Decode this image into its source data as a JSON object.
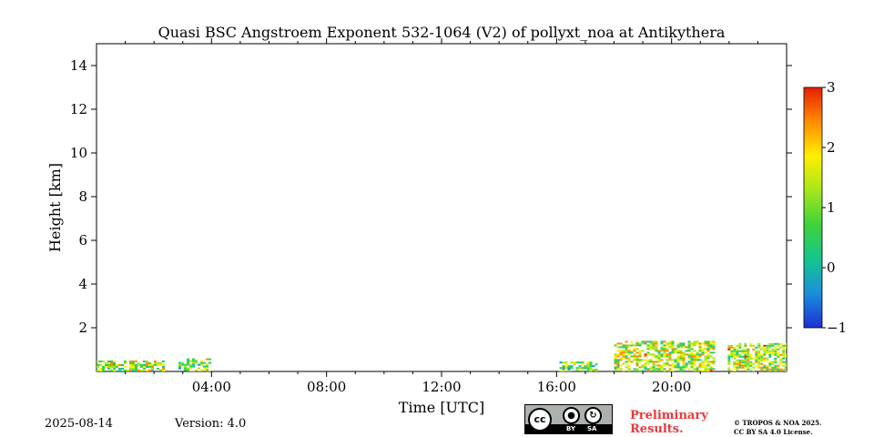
{
  "chart_data": {
    "type": "heatmap",
    "title": "Quasi BSC Angstroem Exponent 532-1064 (V2) of pollyxt_noa at Antikythera",
    "xlabel": "Time [UTC]",
    "ylabel": "Height [km]",
    "xlim_hours": [
      0,
      24
    ],
    "ylim_km": [
      0,
      15
    ],
    "x_ticks": [
      {
        "value": 4,
        "label": "04:00"
      },
      {
        "value": 8,
        "label": "08:00"
      },
      {
        "value": 12,
        "label": "12:00"
      },
      {
        "value": 16,
        "label": "16:00"
      },
      {
        "value": 20,
        "label": "20:00"
      }
    ],
    "y_ticks": [
      {
        "value": 2,
        "label": "2"
      },
      {
        "value": 4,
        "label": "4"
      },
      {
        "value": 6,
        "label": "6"
      },
      {
        "value": 8,
        "label": "8"
      },
      {
        "value": 10,
        "label": "10"
      },
      {
        "value": 12,
        "label": "12"
      },
      {
        "value": 14,
        "label": "14"
      }
    ],
    "colorbar": {
      "range": [
        -1,
        3
      ],
      "ticks": [
        {
          "value": -1,
          "label": "−1"
        },
        {
          "value": 0,
          "label": "0"
        },
        {
          "value": 1,
          "label": "1"
        },
        {
          "value": 2,
          "label": "2"
        },
        {
          "value": 3,
          "label": "3"
        }
      ],
      "colors": [
        "#1b2fd6",
        "#1a8fd8",
        "#15c58f",
        "#3ed23a",
        "#a6e61c",
        "#ffef00",
        "#ff8c00",
        "#e61f00"
      ]
    },
    "data_regions": [
      {
        "name": "night-segment-1",
        "start": 0.0,
        "end": 2.3,
        "top_km": 0.5,
        "mean": 1.3
      },
      {
        "name": "night-segment-2",
        "start": 2.85,
        "end": 3.9,
        "top_km": 0.6,
        "mean": 1.1
      },
      {
        "name": "afternoon-segment",
        "start": 16.1,
        "end": 17.4,
        "top_km": 0.45,
        "mean": 0.9
      },
      {
        "name": "evening-segment-1",
        "start": 18.0,
        "end": 21.45,
        "top_km": 1.4,
        "mean": 1.4
      },
      {
        "name": "evening-segment-2",
        "start": 21.95,
        "end": 24.0,
        "top_km": 1.3,
        "mean": 1.4
      }
    ]
  },
  "footer": {
    "date": "2025-08-14",
    "version": "Version: 4.0",
    "license_badge": {
      "cc": "cc",
      "by": "BY",
      "sa": "SA"
    },
    "preliminary_line1": "Preliminary",
    "preliminary_line2": "Results.",
    "copyright_line1": "© TROPOS & NOA 2025.",
    "copyright_line2": "CC BY SA 4.0 License."
  }
}
